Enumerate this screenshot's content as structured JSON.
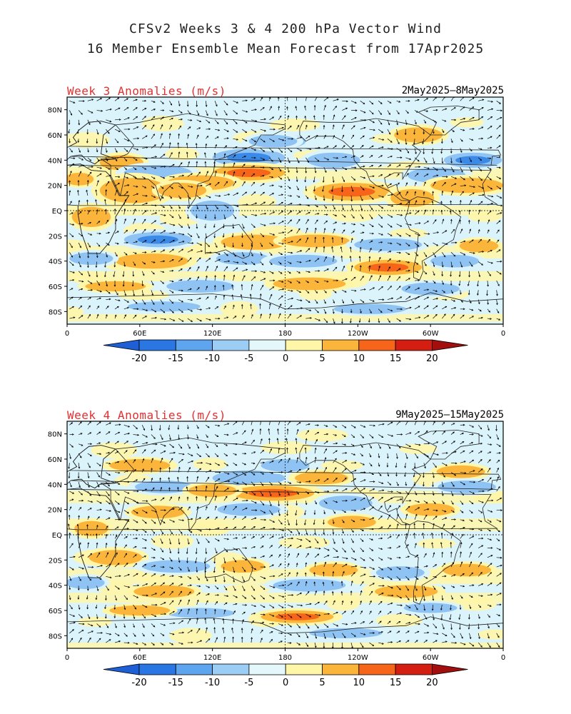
{
  "title_line1": "CFSv2 Weeks 3 & 4 200 hPa Vector Wind",
  "title_line2": "16 Member Ensemble Mean Forecast from 17Apr2025",
  "colors": {
    "-20": "#1e5fd6",
    "-15": "#3c8ae8",
    "-10": "#8fc3f3",
    "-5": "#dbf4fb",
    "0": "#fff6a8",
    "5": "#fbb53a",
    "10": "#f6651a",
    "15": "#d41e12",
    "20": "#a30e0e",
    "label_red": "#e03030"
  },
  "colorbar_labels": [
    "-20",
    "-15",
    "-10",
    "-5",
    "0",
    "5",
    "10",
    "15",
    "20"
  ],
  "lat_ticks": [
    "80N",
    "60N",
    "40N",
    "20N",
    "EQ",
    "20S",
    "40S",
    "60S",
    "80S"
  ],
  "lon_ticks": [
    "0",
    "60E",
    "120E",
    "180",
    "120W",
    "60W",
    "0"
  ],
  "panels": [
    {
      "label": "Week 3 Anomalies (m/s)",
      "dates": "2May2025–8May2025",
      "anomalies": [
        {
          "lon": 45,
          "lat": 38,
          "rx": 18,
          "ry": 6,
          "v": 6
        },
        {
          "lon": 75,
          "lat": 30,
          "rx": 28,
          "ry": 6,
          "v": -9
        },
        {
          "lon": 150,
          "lat": 42,
          "rx": 30,
          "ry": 7,
          "v": -11
        },
        {
          "lon": 175,
          "lat": 55,
          "rx": 22,
          "ry": 6,
          "v": -6
        },
        {
          "lon": 150,
          "lat": 30,
          "rx": 30,
          "ry": 6,
          "v": 14
        },
        {
          "lon": 110,
          "lat": 22,
          "rx": 28,
          "ry": 6,
          "v": 7
        },
        {
          "lon": 55,
          "lat": 16,
          "rx": 28,
          "ry": 10,
          "v": 8
        },
        {
          "lon": 95,
          "lat": 16,
          "rx": 20,
          "ry": 6,
          "v": 5
        },
        {
          "lon": 235,
          "lat": 15,
          "rx": 32,
          "ry": 7,
          "v": 12
        },
        {
          "lon": 220,
          "lat": 40,
          "rx": 22,
          "ry": 6,
          "v": -8
        },
        {
          "lon": 170,
          "lat": 55,
          "rx": 20,
          "ry": 5,
          "v": -7
        },
        {
          "lon": 305,
          "lat": 28,
          "rx": 24,
          "ry": 6,
          "v": -7
        },
        {
          "lon": 335,
          "lat": 40,
          "rx": 24,
          "ry": 6,
          "v": -10
        },
        {
          "lon": 330,
          "lat": 20,
          "rx": 30,
          "ry": 6,
          "v": 8
        },
        {
          "lon": 290,
          "lat": 60,
          "rx": 20,
          "ry": 6,
          "v": 6
        },
        {
          "lon": 285,
          "lat": 10,
          "rx": 18,
          "ry": 7,
          "v": 6
        },
        {
          "lon": 120,
          "lat": 0,
          "rx": 18,
          "ry": 8,
          "v": -9
        },
        {
          "lon": 20,
          "lat": -5,
          "rx": 16,
          "ry": 8,
          "v": 5
        },
        {
          "lon": 75,
          "lat": -23,
          "rx": 28,
          "ry": 6,
          "v": -11
        },
        {
          "lon": 155,
          "lat": -25,
          "rx": 28,
          "ry": 6,
          "v": 7
        },
        {
          "lon": 205,
          "lat": -24,
          "rx": 28,
          "ry": 5,
          "v": 8
        },
        {
          "lon": 265,
          "lat": -27,
          "rx": 28,
          "ry": 5,
          "v": -8
        },
        {
          "lon": 340,
          "lat": -28,
          "rx": 16,
          "ry": 5,
          "v": 6
        },
        {
          "lon": 70,
          "lat": -40,
          "rx": 30,
          "ry": 6,
          "v": 7
        },
        {
          "lon": 145,
          "lat": -38,
          "rx": 22,
          "ry": 5,
          "v": -7
        },
        {
          "lon": 195,
          "lat": -40,
          "rx": 28,
          "ry": 5,
          "v": -9
        },
        {
          "lon": 265,
          "lat": -45,
          "rx": 28,
          "ry": 6,
          "v": 10
        },
        {
          "lon": 320,
          "lat": -40,
          "rx": 20,
          "ry": 5,
          "v": -6
        },
        {
          "lon": 20,
          "lat": -38,
          "rx": 18,
          "ry": 5,
          "v": -6
        },
        {
          "lon": 110,
          "lat": -60,
          "rx": 28,
          "ry": 5,
          "v": -8
        },
        {
          "lon": 200,
          "lat": -58,
          "rx": 30,
          "ry": 5,
          "v": 8
        },
        {
          "lon": 300,
          "lat": -62,
          "rx": 24,
          "ry": 5,
          "v": -7
        },
        {
          "lon": 40,
          "lat": -60,
          "rx": 25,
          "ry": 4,
          "v": 5
        },
        {
          "lon": 80,
          "lat": -76,
          "rx": 30,
          "ry": 4,
          "v": -6
        },
        {
          "lon": 250,
          "lat": -78,
          "rx": 30,
          "ry": 4,
          "v": -8
        },
        {
          "lon": 10,
          "lat": 25,
          "rx": 12,
          "ry": 5,
          "v": 6
        }
      ]
    },
    {
      "label": "Week 4 Anomalies (m/s)",
      "dates": "9May2025–15May2025",
      "anomalies": [
        {
          "lon": 150,
          "lat": 45,
          "rx": 30,
          "ry": 6,
          "v": -9
        },
        {
          "lon": 80,
          "lat": 38,
          "rx": 24,
          "ry": 5,
          "v": -7
        },
        {
          "lon": 170,
          "lat": 33,
          "rx": 34,
          "ry": 6,
          "v": 11
        },
        {
          "lon": 120,
          "lat": 35,
          "rx": 20,
          "ry": 5,
          "v": 6
        },
        {
          "lon": 150,
          "lat": 20,
          "rx": 26,
          "ry": 5,
          "v": -6
        },
        {
          "lon": 230,
          "lat": 25,
          "rx": 22,
          "ry": 6,
          "v": -8
        },
        {
          "lon": 235,
          "lat": 10,
          "rx": 20,
          "ry": 5,
          "v": 7
        },
        {
          "lon": 75,
          "lat": 18,
          "rx": 22,
          "ry": 5,
          "v": 6
        },
        {
          "lon": 325,
          "lat": 50,
          "rx": 20,
          "ry": 5,
          "v": 8
        },
        {
          "lon": 330,
          "lat": 38,
          "rx": 24,
          "ry": 5,
          "v": -7
        },
        {
          "lon": 300,
          "lat": 20,
          "rx": 20,
          "ry": 5,
          "v": 5
        },
        {
          "lon": 180,
          "lat": 55,
          "rx": 20,
          "ry": 5,
          "v": -6
        },
        {
          "lon": 210,
          "lat": 45,
          "rx": 22,
          "ry": 5,
          "v": 5
        },
        {
          "lon": 60,
          "lat": 55,
          "rx": 25,
          "ry": 5,
          "v": 5
        },
        {
          "lon": 40,
          "lat": -18,
          "rx": 22,
          "ry": 6,
          "v": 5
        },
        {
          "lon": 90,
          "lat": -25,
          "rx": 28,
          "ry": 5,
          "v": -9
        },
        {
          "lon": 145,
          "lat": -25,
          "rx": 18,
          "ry": 5,
          "v": 5
        },
        {
          "lon": 220,
          "lat": -28,
          "rx": 20,
          "ry": 5,
          "v": 6
        },
        {
          "lon": 275,
          "lat": -30,
          "rx": 20,
          "ry": 5,
          "v": -7
        },
        {
          "lon": 330,
          "lat": -28,
          "rx": 20,
          "ry": 5,
          "v": 5
        },
        {
          "lon": 200,
          "lat": -40,
          "rx": 30,
          "ry": 5,
          "v": -9
        },
        {
          "lon": 80,
          "lat": -45,
          "rx": 25,
          "ry": 5,
          "v": 7
        },
        {
          "lon": 280,
          "lat": -45,
          "rx": 26,
          "ry": 5,
          "v": 8
        },
        {
          "lon": 15,
          "lat": -38,
          "rx": 16,
          "ry": 5,
          "v": -6
        },
        {
          "lon": 190,
          "lat": -65,
          "rx": 30,
          "ry": 5,
          "v": 11
        },
        {
          "lon": 110,
          "lat": -62,
          "rx": 28,
          "ry": 4,
          "v": -7
        },
        {
          "lon": 60,
          "lat": -60,
          "rx": 25,
          "ry": 4,
          "v": 5
        },
        {
          "lon": 300,
          "lat": -58,
          "rx": 22,
          "ry": 4,
          "v": -6
        },
        {
          "lon": 230,
          "lat": -78,
          "rx": 30,
          "ry": 4,
          "v": -6
        },
        {
          "lon": 20,
          "lat": 5,
          "rx": 14,
          "ry": 6,
          "v": 5
        }
      ]
    }
  ]
}
